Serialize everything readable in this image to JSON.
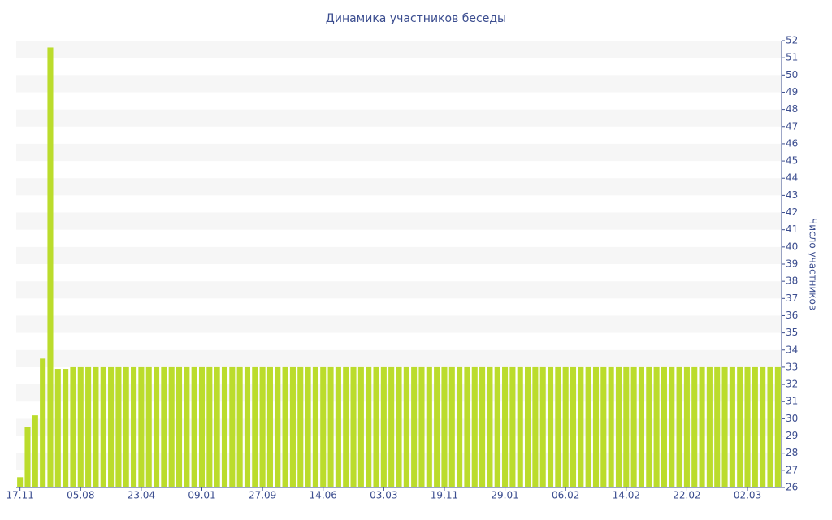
{
  "chart_data": {
    "type": "bar",
    "title": "Динамика участников беседы",
    "y_label": "Число участников",
    "categories": [
      "17.11",
      null,
      null,
      null,
      null,
      null,
      null,
      null,
      "05.08",
      null,
      null,
      null,
      null,
      null,
      null,
      null,
      "23.04",
      null,
      null,
      null,
      null,
      null,
      null,
      null,
      "09.01",
      null,
      null,
      null,
      null,
      null,
      null,
      null,
      "27.09",
      null,
      null,
      null,
      null,
      null,
      null,
      null,
      "14.06",
      null,
      null,
      null,
      null,
      null,
      null,
      null,
      "03.03",
      null,
      null,
      null,
      null,
      null,
      null,
      null,
      "19.11",
      null,
      null,
      null,
      null,
      null,
      null,
      null,
      "29.01",
      null,
      null,
      null,
      null,
      null,
      null,
      null,
      "06.02",
      null,
      null,
      null,
      null,
      null,
      null,
      null,
      "14.02",
      null,
      null,
      null,
      null,
      null,
      null,
      null,
      "22.02",
      null,
      null,
      null,
      null,
      null,
      null,
      null,
      "02.03",
      null,
      null,
      null,
      null
    ],
    "values": [
      26.6,
      29.5,
      30.2,
      33.5,
      51.6,
      32.9,
      32.9,
      33,
      33,
      33,
      33,
      33,
      33,
      33,
      33,
      33,
      33,
      33,
      33,
      33,
      33,
      33,
      33,
      33,
      33,
      33,
      33,
      33,
      33,
      33,
      33,
      33,
      33,
      33,
      33,
      33,
      33,
      33,
      33,
      33,
      33,
      33,
      33,
      33,
      33,
      33,
      33,
      33,
      33,
      33,
      33,
      33,
      33,
      33,
      33,
      33,
      33,
      33,
      33,
      33,
      33,
      33,
      33,
      33,
      33,
      33,
      33,
      33,
      33,
      33,
      33,
      33,
      33,
      33,
      33,
      33,
      33,
      33,
      33,
      33,
      33,
      33,
      33,
      33,
      33,
      33,
      33,
      33,
      33,
      33,
      33,
      33,
      33,
      33,
      33,
      33,
      33,
      33,
      33,
      33,
      33
    ],
    "color": "#bbdc2c",
    "band_color": "#f6f6f6",
    "grid": "bands",
    "y_axis_side": "right",
    "ylim": [
      26,
      52
    ],
    "yticks": [
      26,
      27,
      28,
      29,
      30,
      31,
      32,
      33,
      34,
      35,
      36,
      37,
      38,
      39,
      40,
      41,
      42,
      43,
      44,
      45,
      46,
      47,
      48,
      49,
      50,
      51,
      52
    ]
  }
}
